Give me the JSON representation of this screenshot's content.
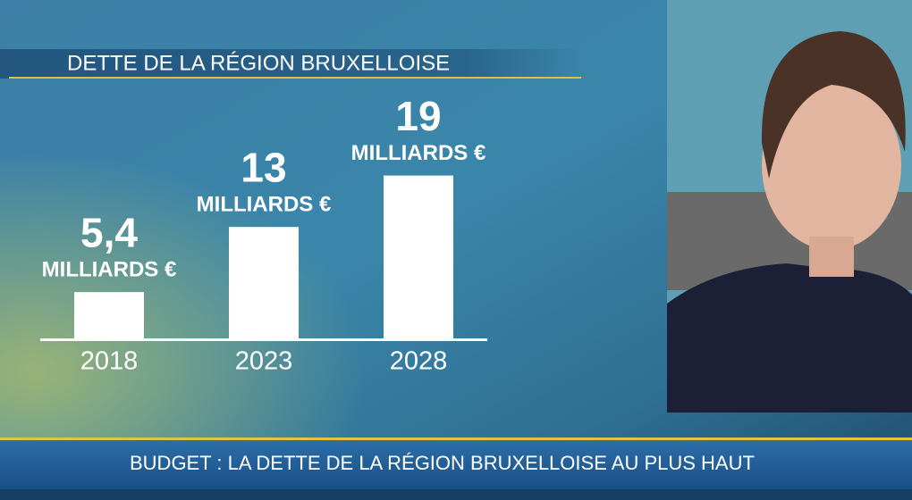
{
  "chart_data": {
    "type": "bar",
    "title": "DETTE DE LA RÉGION BRUXELLOISE",
    "categories": [
      "2018",
      "2023",
      "2028"
    ],
    "values": [
      5.4,
      13,
      19
    ],
    "value_labels": [
      "5,4",
      "13",
      "19"
    ],
    "unit": "MILLIARDS €",
    "color": "#ffffff"
  },
  "ticker": "BUDGET : LA DETTE DE LA RÉGION BRUXELLOISE AU PLUS HAUT"
}
